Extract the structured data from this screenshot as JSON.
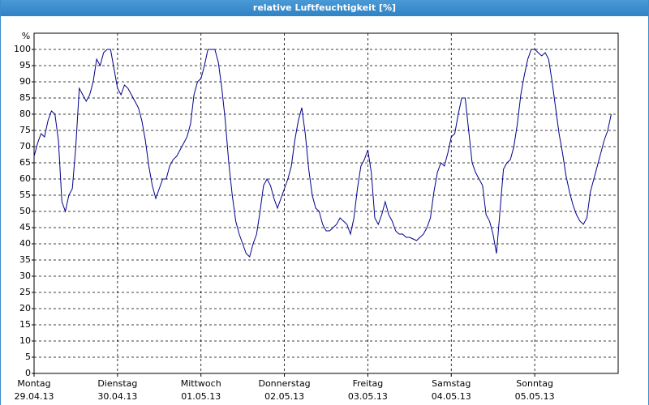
{
  "window_title": "relative Luftfeuchtigkeit [%]",
  "chart_data": {
    "type": "line",
    "y_unit_label": "%",
    "color": "#00008b",
    "x": [
      0,
      1,
      2,
      3,
      4,
      5,
      6,
      7,
      8,
      9,
      10,
      11,
      12,
      13,
      14,
      15,
      16,
      17,
      18,
      19,
      20,
      21,
      22,
      23,
      24,
      25,
      26,
      27,
      28,
      29,
      30,
      31,
      32,
      33,
      34,
      35,
      36,
      37,
      38,
      39,
      40,
      41,
      42,
      43,
      44,
      45,
      46,
      47,
      48,
      49,
      50,
      51,
      52,
      53,
      54,
      55,
      56,
      57,
      58,
      59,
      60,
      61,
      62,
      63,
      64,
      65,
      66,
      67,
      68,
      69,
      70,
      71,
      72,
      73,
      74,
      75,
      76,
      77,
      78,
      79,
      80,
      81,
      82,
      83,
      84,
      85,
      86,
      87,
      88,
      89,
      90,
      91,
      92,
      93,
      94,
      95,
      96,
      97,
      98,
      99,
      100,
      101,
      102,
      103,
      104,
      105,
      106,
      107,
      108,
      109,
      110,
      111,
      112,
      113,
      114,
      115,
      116,
      117,
      118,
      119,
      120,
      121,
      122,
      123,
      124,
      125,
      126,
      127,
      128,
      129,
      130,
      131,
      132,
      133,
      134,
      135,
      136,
      137,
      138,
      139,
      140,
      141,
      142,
      143,
      144,
      145,
      146,
      147,
      148,
      149,
      150,
      151,
      152,
      153,
      154,
      155,
      156,
      157,
      158,
      159,
      160,
      161,
      162,
      163,
      164,
      165,
      166
    ],
    "values": [
      67,
      71,
      74,
      73,
      78,
      81,
      80,
      72,
      53,
      50,
      55,
      57,
      70,
      88,
      86,
      84,
      86,
      90,
      97,
      95,
      99,
      100,
      100,
      94,
      88,
      86,
      89,
      88,
      86,
      84,
      82,
      78,
      72,
      64,
      58,
      54,
      57,
      60,
      60,
      64,
      66,
      67,
      69,
      71,
      73,
      77,
      86,
      90,
      91,
      95,
      100,
      100,
      100,
      96,
      88,
      78,
      65,
      55,
      47,
      43,
      40,
      37,
      36,
      40,
      43,
      50,
      58,
      60,
      58,
      54,
      51,
      54,
      57,
      60,
      64,
      72,
      78,
      82,
      74,
      63,
      55,
      51,
      50,
      46,
      44,
      44,
      45,
      46,
      48,
      47,
      46,
      43,
      48,
      57,
      64,
      66,
      69,
      62,
      48,
      46,
      49,
      53,
      49,
      47,
      44,
      43,
      43,
      42,
      42,
      41.5,
      41,
      42,
      43,
      45,
      48,
      56,
      62,
      65,
      64,
      68,
      73,
      74,
      80,
      85,
      85,
      75,
      65,
      62,
      60,
      58,
      49,
      47,
      43,
      37,
      50,
      63,
      65,
      66,
      70,
      77,
      86,
      92,
      97,
      100,
      100,
      99,
      98,
      99,
      97,
      90,
      82,
      74,
      68,
      61,
      56,
      52,
      49,
      47,
      46,
      48,
      56,
      60,
      64,
      68,
      72,
      75,
      80
    ],
    "xlim": [
      0,
      168
    ],
    "xticks": [
      {
        "value": 0,
        "label": [
          "Montag",
          "29.04.13"
        ]
      },
      {
        "value": 24,
        "label": [
          "Dienstag",
          "30.04.13"
        ]
      },
      {
        "value": 48,
        "label": [
          "Mittwoch",
          "01.05.13"
        ]
      },
      {
        "value": 72,
        "label": [
          "Donnerstag",
          "02.05.13"
        ]
      },
      {
        "value": 96,
        "label": [
          "Freitag",
          "03.05.13"
        ]
      },
      {
        "value": 120,
        "label": [
          "Samstag",
          "04.05.13"
        ]
      },
      {
        "value": 144,
        "label": [
          "Sonntag",
          "05.05.13"
        ]
      }
    ],
    "ylim": [
      0,
      105
    ],
    "yticks": [
      0,
      5,
      10,
      15,
      20,
      25,
      30,
      35,
      40,
      45,
      50,
      55,
      60,
      65,
      70,
      75,
      80,
      85,
      90,
      95,
      100
    ],
    "grid": true
  }
}
